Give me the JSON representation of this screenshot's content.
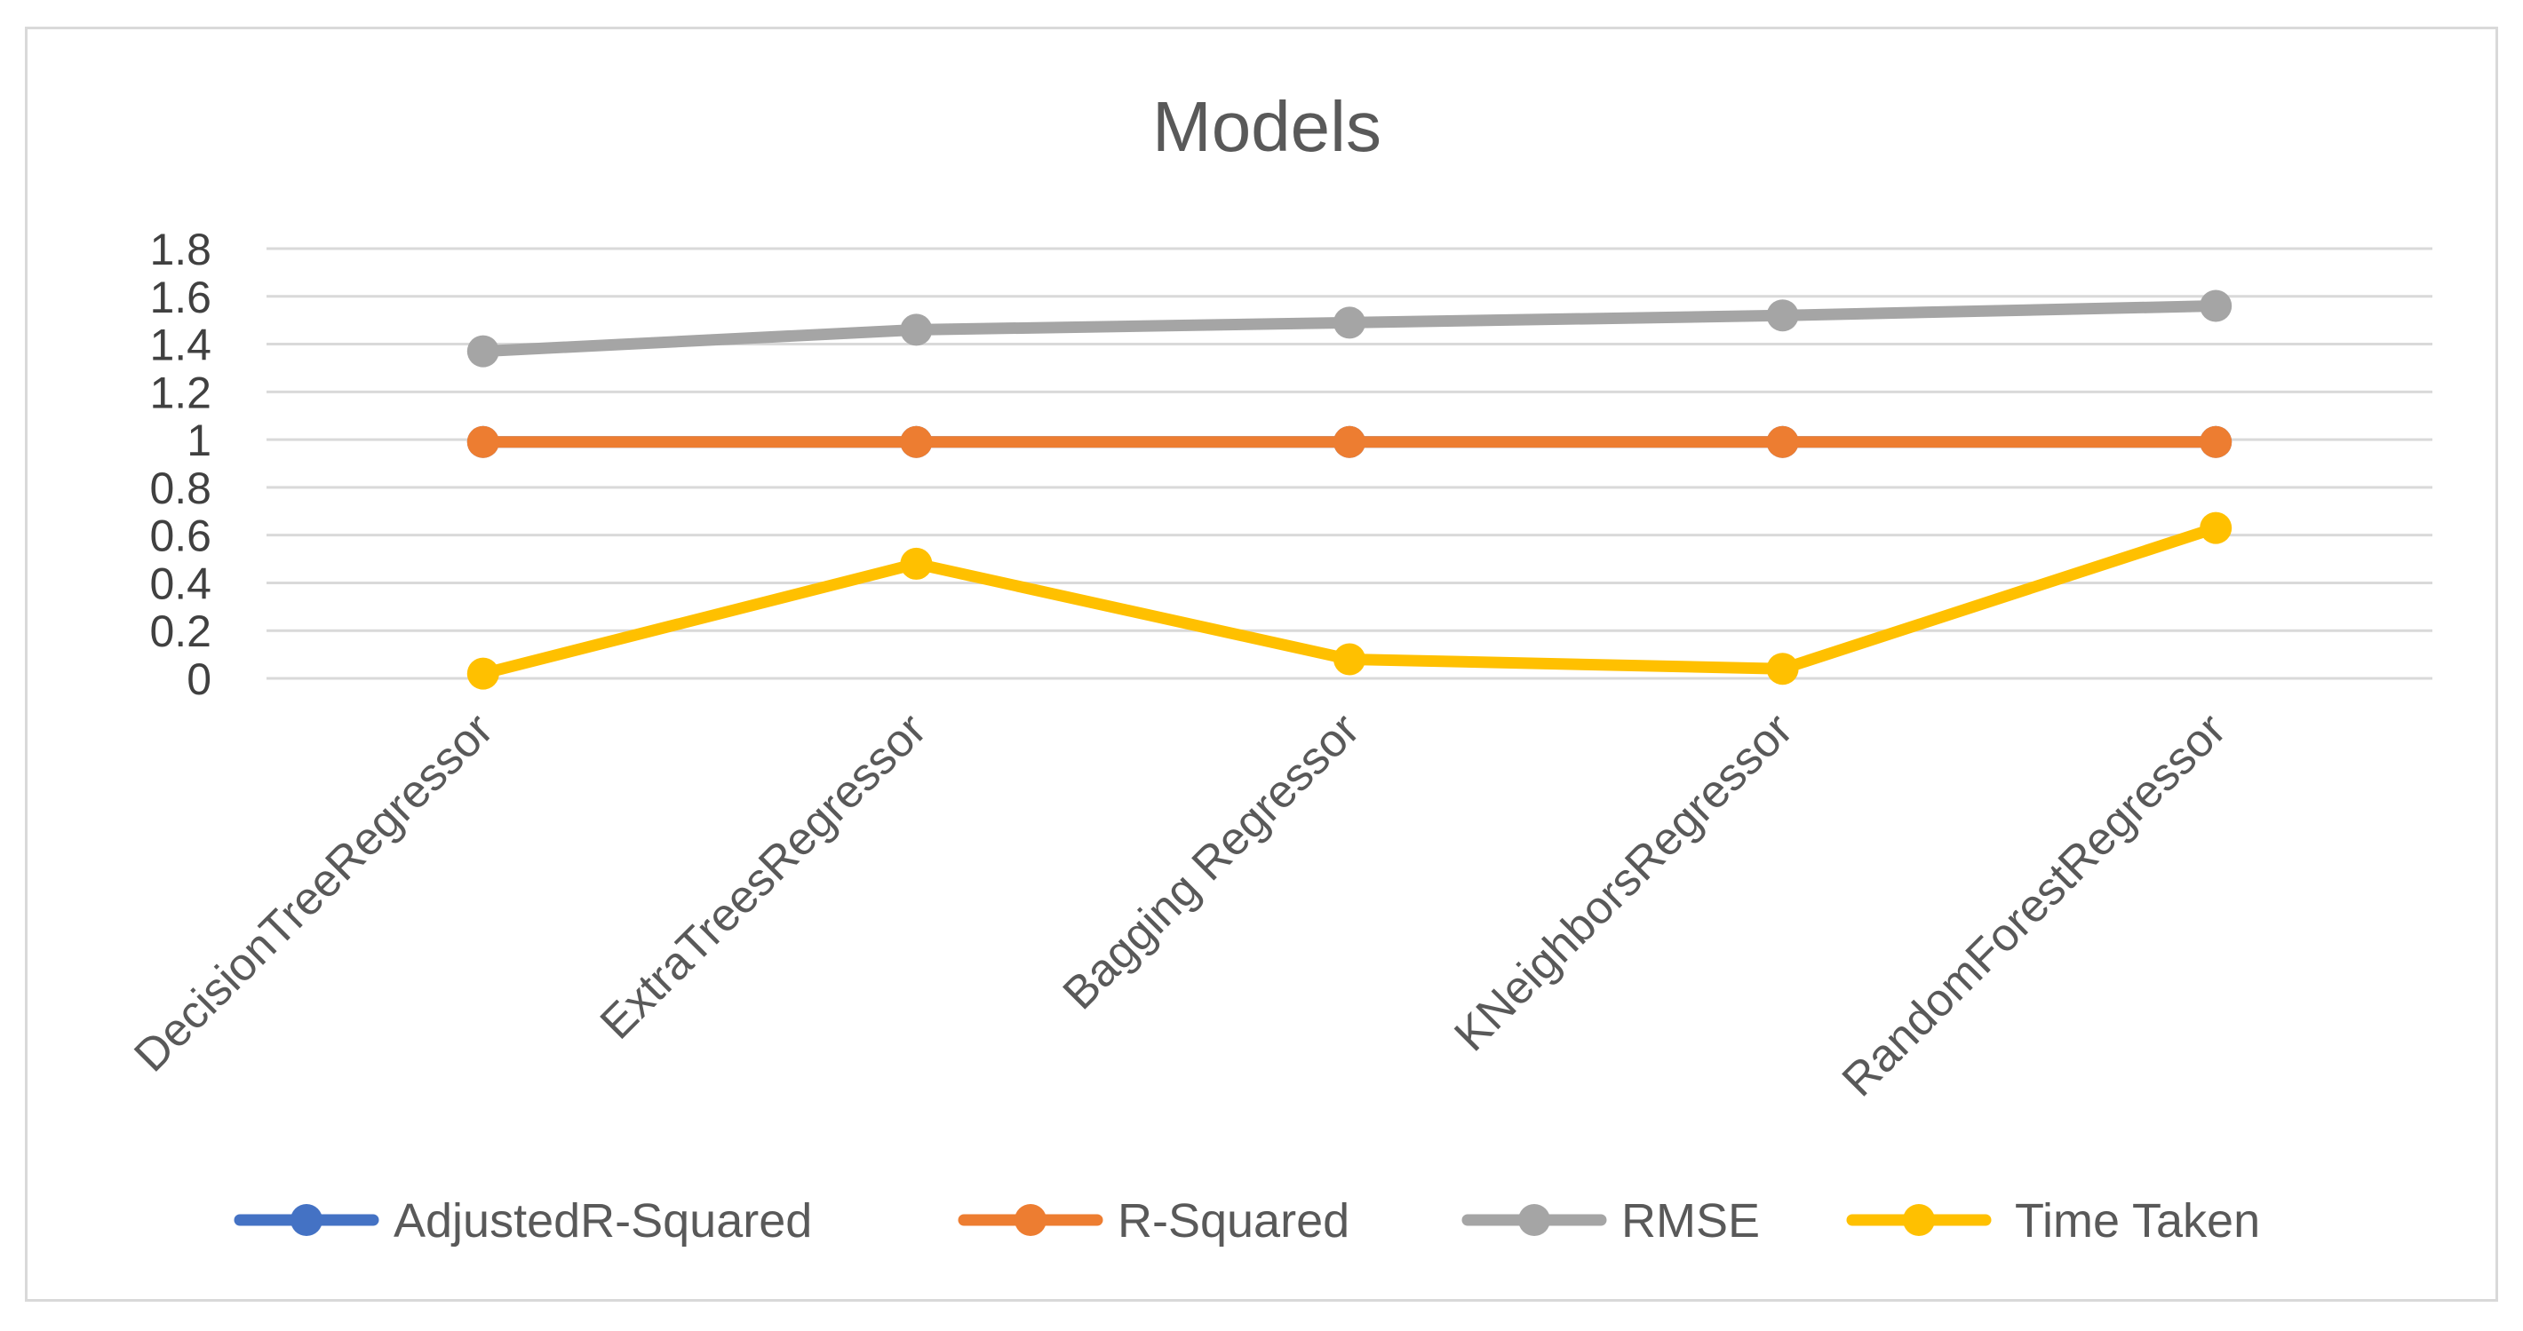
{
  "chart_data": {
    "type": "line",
    "title": "Models",
    "xlabel": "",
    "ylabel": "",
    "categories": [
      "DecisionTreeRegressor",
      "ExtraTreesRegressor",
      "Bagging Regressor",
      "KNeighborsRegressor",
      "RandomForestRegressor"
    ],
    "y_ticks": [
      "0",
      "0.2",
      "0.4",
      "0.6",
      "0.8",
      "1",
      "1.2",
      "1.4",
      "1.6",
      "1.8"
    ],
    "ylim": [
      0,
      1.8
    ],
    "grid": true,
    "legend_position": "bottom",
    "series": [
      {
        "name": "AdjustedR-Squared",
        "color": "#4472c4",
        "values": [
          0.99,
          0.99,
          0.99,
          0.99,
          0.99
        ]
      },
      {
        "name": "R-Squared",
        "color": "#ed7d31",
        "values": [
          0.99,
          0.99,
          0.99,
          0.99,
          0.99
        ]
      },
      {
        "name": "RMSE",
        "color": "#a5a5a5",
        "values": [
          1.37,
          1.46,
          1.49,
          1.52,
          1.56
        ]
      },
      {
        "name": "Time Taken",
        "color": "#ffc000",
        "values": [
          0.02,
          0.48,
          0.08,
          0.04,
          0.63
        ]
      }
    ]
  }
}
